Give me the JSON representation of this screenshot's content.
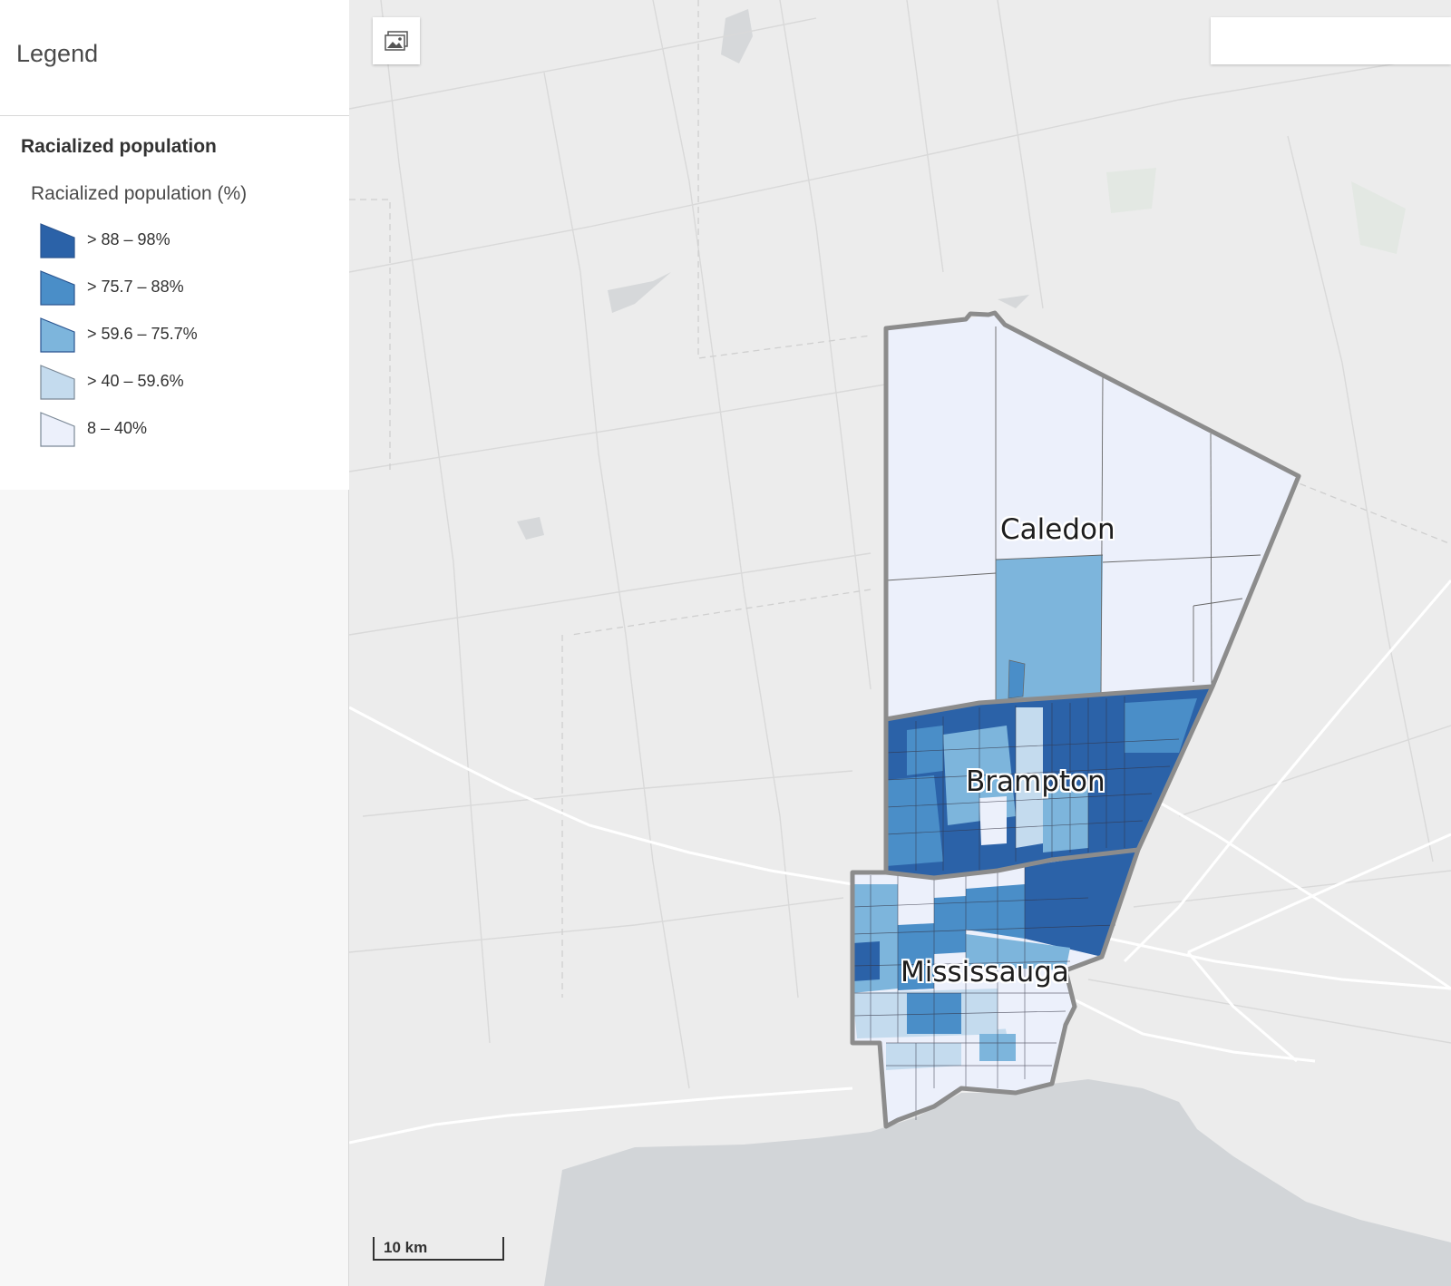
{
  "legend": {
    "title": "Legend",
    "layer_title": "Racialized population",
    "field_title": "Racialized population (%)",
    "classes": [
      {
        "label": "> 88 – 98%",
        "color": "#2b62a8"
      },
      {
        "label": "> 75.7 – 88%",
        "color": "#4a8ec8"
      },
      {
        "label": "> 59.6 – 75.7%",
        "color": "#7db5dc"
      },
      {
        "label": "> 40 – 59.6%",
        "color": "#c4dbee"
      },
      {
        "label": "8 – 40%",
        "color": "#ecf0fb"
      }
    ]
  },
  "map": {
    "places": [
      "Caledon",
      "Brampton",
      "Mississauga"
    ],
    "scale_label": "10 km",
    "basemap_button_icon": "basemap-gallery-icon",
    "colors": {
      "boundary": "#8c8c8c",
      "water": "#d2d5d8",
      "land": "#ececec",
      "roads": "#ffffff"
    }
  }
}
